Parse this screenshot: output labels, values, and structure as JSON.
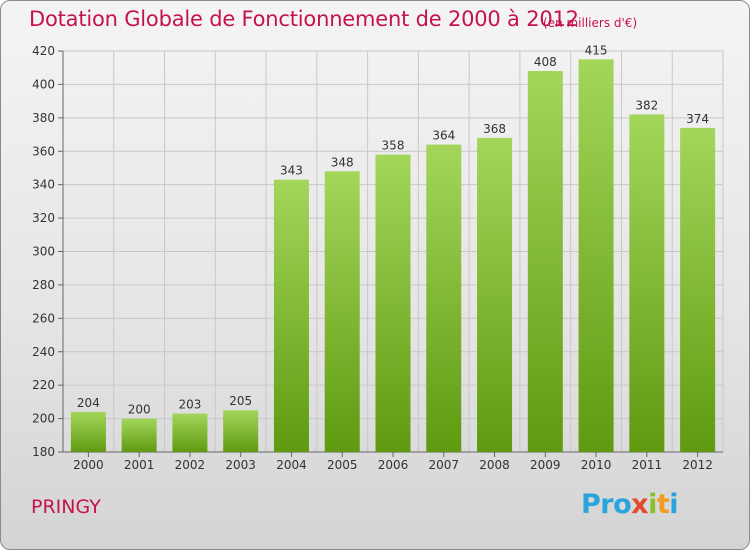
{
  "header": {
    "title": "Dotation Globale de Fonctionnement de 2000 à 2012",
    "unit": "(en milliers d'€)"
  },
  "commune": "PRINGY",
  "logo": {
    "text": "Proxiti",
    "parts": [
      "Pro",
      "x",
      "i",
      "t",
      "i"
    ]
  },
  "colors": {
    "title": "#c4144a",
    "bar_light": "#a3d65a",
    "bar_dark": "#5f9a10",
    "grid": "#c8c8c8"
  },
  "chart_data": {
    "type": "bar",
    "title": "Dotation Globale de Fonctionnement de 2000 à 2012",
    "subtitle": "(en milliers d'€)",
    "categories": [
      "2000",
      "2001",
      "2002",
      "2003",
      "2004",
      "2005",
      "2006",
      "2007",
      "2008",
      "2009",
      "2010",
      "2011",
      "2012"
    ],
    "values": [
      204,
      200,
      203,
      205,
      343,
      348,
      358,
      364,
      368,
      408,
      415,
      382,
      374
    ],
    "ylim": [
      180,
      420
    ],
    "yticks": [
      180,
      200,
      220,
      240,
      260,
      280,
      300,
      320,
      340,
      360,
      380,
      400,
      420
    ],
    "grid": true,
    "data_labels": true
  }
}
